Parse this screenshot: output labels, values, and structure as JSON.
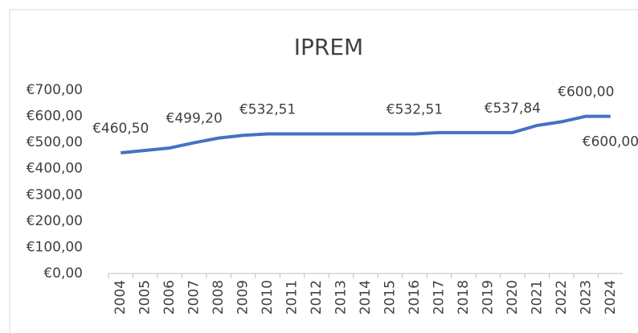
{
  "chart_data": {
    "type": "line",
    "title": "IPREM",
    "categories": [
      "2004",
      "2005",
      "2006",
      "2007",
      "2008",
      "2009",
      "2010",
      "2011",
      "2012",
      "2013",
      "2014",
      "2015",
      "2016",
      "2017",
      "2018",
      "2019",
      "2020",
      "2021",
      "2022",
      "2023",
      "2024"
    ],
    "series": [
      {
        "name": "IPREM",
        "color": "#4472c4",
        "values": [
          460.5,
          469.8,
          479.1,
          499.2,
          516.9,
          527.24,
          532.51,
          532.51,
          532.51,
          532.51,
          532.51,
          532.51,
          532.51,
          537.84,
          537.84,
          537.84,
          537.84,
          564.9,
          579.02,
          600.0,
          600.0
        ],
        "value_labels": [
          "€460,50",
          null,
          null,
          "€499,20",
          null,
          null,
          "€532,51",
          null,
          null,
          null,
          null,
          null,
          "€532,51",
          null,
          null,
          null,
          "€537,84",
          null,
          null,
          "€600,00",
          "€600,00"
        ]
      }
    ],
    "ylim": [
      0,
      700
    ],
    "yticks": [
      {
        "value": 0,
        "label": "€0,00"
      },
      {
        "value": 100,
        "label": "€100,00"
      },
      {
        "value": 200,
        "label": "€200,00"
      },
      {
        "value": 300,
        "label": "€300,00"
      },
      {
        "value": 400,
        "label": "€400,00"
      },
      {
        "value": 500,
        "label": "€500,00"
      },
      {
        "value": 600,
        "label": "€600,00"
      },
      {
        "value": 700,
        "label": "€700,00"
      }
    ],
    "grid": false
  }
}
